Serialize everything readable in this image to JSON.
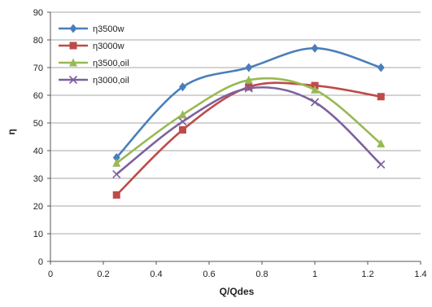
{
  "chart_data": {
    "type": "line",
    "xlabel": "Q/Qdes",
    "ylabel": "η",
    "xlim": [
      0,
      1.4
    ],
    "ylim": [
      0,
      90
    ],
    "x_ticks": [
      "0",
      "0.2",
      "0.4",
      "0.6",
      "0.8",
      "1",
      "1.2",
      "1.4"
    ],
    "y_ticks": [
      "0",
      "10",
      "20",
      "30",
      "40",
      "50",
      "60",
      "70",
      "80",
      "90"
    ],
    "grid": "horizontal",
    "legend": "top-left",
    "smooth": true,
    "series": [
      {
        "name": "η3500w",
        "color": "#4a7ebb",
        "marker": "diamond",
        "x": [
          0.25,
          0.5,
          0.75,
          1.0,
          1.25
        ],
        "y": [
          37.5,
          63,
          70,
          77,
          70
        ]
      },
      {
        "name": "η3000w",
        "color": "#be4b48",
        "marker": "square",
        "x": [
          0.25,
          0.5,
          0.75,
          1.0,
          1.25
        ],
        "y": [
          24,
          47.5,
          63,
          63.5,
          59.5
        ]
      },
      {
        "name": "η3500,oil",
        "color": "#98b954",
        "marker": "triangle",
        "x": [
          0.25,
          0.5,
          0.75,
          1.0,
          1.25
        ],
        "y": [
          35.5,
          53,
          65.5,
          62,
          42.5
        ]
      },
      {
        "name": "η3000,oil",
        "color": "#7d60a0",
        "marker": "x",
        "x": [
          0.25,
          0.5,
          0.75,
          1.0,
          1.25
        ],
        "y": [
          31.5,
          50.5,
          62.5,
          57.5,
          35
        ]
      }
    ]
  }
}
